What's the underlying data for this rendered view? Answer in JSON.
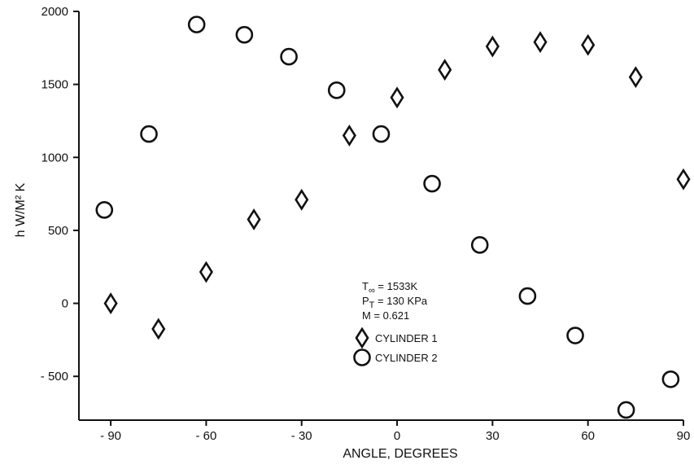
{
  "chart_data": {
    "type": "scatter",
    "title": "",
    "xlabel": "ANGLE, DEGREES",
    "ylabel": "h W/M² K",
    "xlim": [
      -100,
      90
    ],
    "ylim": [
      -800,
      2000
    ],
    "x_ticks": [
      -90,
      -60,
      -30,
      0,
      30,
      60,
      90
    ],
    "x_tick_labels": [
      "- 90",
      "- 60",
      "- 30",
      "0",
      "30",
      "60",
      "90"
    ],
    "y_ticks": [
      -500,
      0,
      500,
      1000,
      1500,
      2000
    ],
    "y_tick_labels": [
      "- 500",
      "0",
      "500",
      "1000",
      "1500",
      "2000"
    ],
    "grid": false,
    "conditions": [
      {
        "symbol": "T",
        "subscript": "∞",
        "text": " = 1533K"
      },
      {
        "symbol": "P",
        "subscript": "T",
        "text": " = 130 KPa"
      },
      {
        "symbol": "M",
        "subscript": "",
        "text": "   = 0.621"
      }
    ],
    "legend_position": "bottom-right",
    "series": [
      {
        "name": "CYLINDER 1",
        "marker": "diamond",
        "x": [
          -90,
          -75,
          -60,
          -45,
          -30,
          -15,
          0,
          15,
          30,
          45,
          60,
          75,
          90
        ],
        "y": [
          0,
          -175,
          215,
          575,
          710,
          1150,
          1410,
          1600,
          1760,
          1790,
          1770,
          1550,
          850
        ]
      },
      {
        "name": "CYLINDER 2",
        "marker": "circle",
        "x": [
          -92,
          -78,
          -63,
          -48,
          -34,
          -19,
          -5,
          11,
          26,
          41,
          56,
          72,
          86
        ],
        "y": [
          640,
          1160,
          1910,
          1840,
          1690,
          1460,
          1160,
          820,
          400,
          50,
          -220,
          -730,
          -520
        ]
      }
    ]
  }
}
